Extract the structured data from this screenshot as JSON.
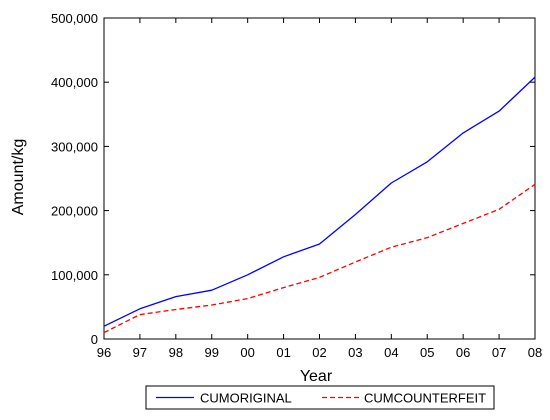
{
  "chart_data": {
    "type": "line",
    "title": "",
    "xlabel": "Year",
    "ylabel": "Amount/kg",
    "x": [
      "96",
      "97",
      "98",
      "99",
      "00",
      "01",
      "02",
      "03",
      "04",
      "05",
      "06",
      "07",
      "08"
    ],
    "y_ticks": [
      "0",
      "100,000",
      "200,000",
      "300,000",
      "400,000",
      "500,000"
    ],
    "y_tick_values": [
      0,
      100000,
      200000,
      300000,
      400000,
      500000
    ],
    "ylim": [
      0,
      500000
    ],
    "grid": false,
    "legend_position": "bottom",
    "series": [
      {
        "name": "CUMORIGINAL",
        "color": "#0000ff",
        "line_style": "solid",
        "values": [
          20000,
          47000,
          66000,
          76000,
          100000,
          128000,
          148000,
          194000,
          243000,
          276000,
          321000,
          355000,
          408000
        ]
      },
      {
        "name": "CUMCOUNTERFEIT",
        "color": "#ff0000",
        "line_style": "dashed",
        "values": [
          10000,
          38000,
          46000,
          53000,
          63000,
          80000,
          96000,
          120000,
          143000,
          158000,
          180000,
          202000,
          241000
        ]
      }
    ]
  }
}
